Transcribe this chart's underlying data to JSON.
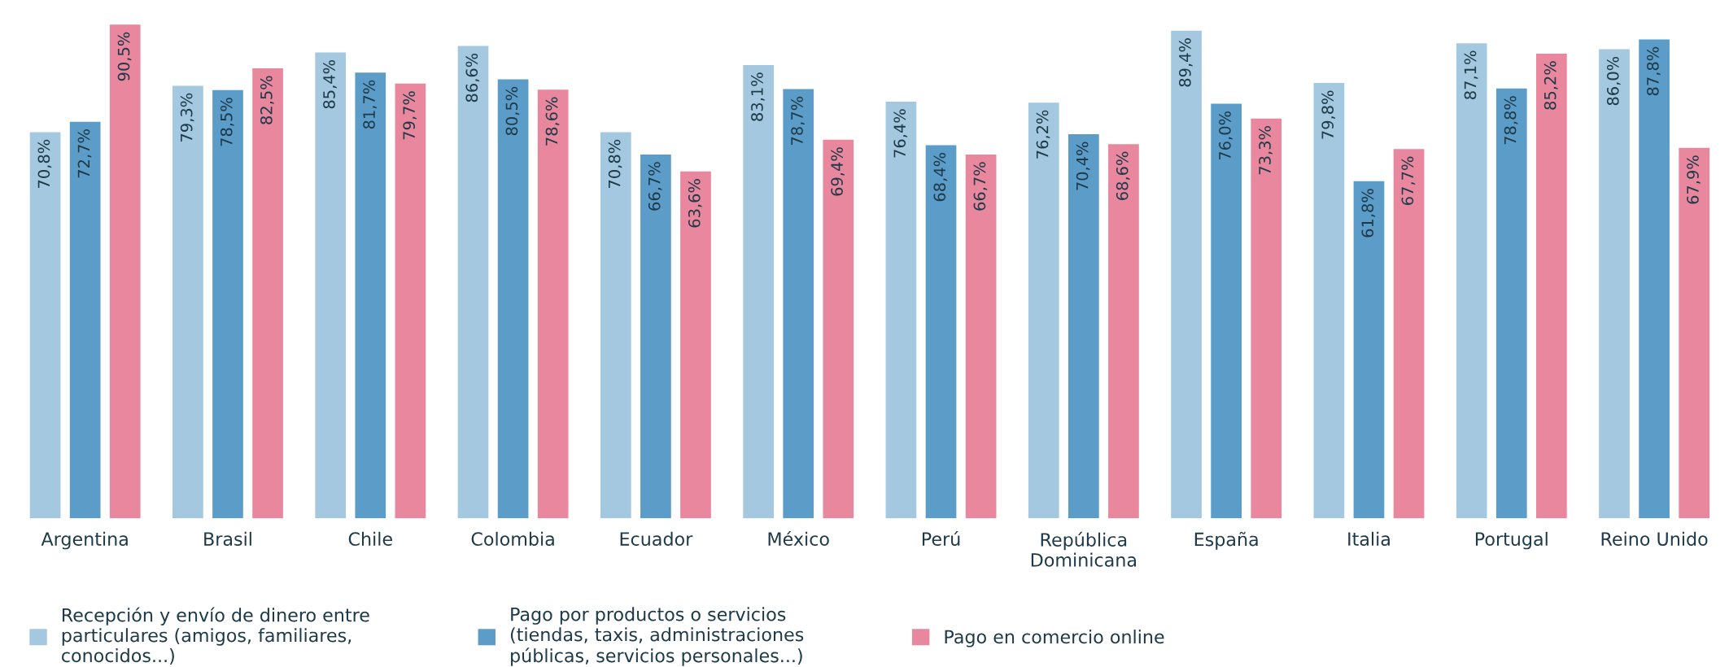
{
  "chart_data": {
    "type": "bar",
    "categories": [
      "Argentina",
      "Brasil",
      "Chile",
      "Colombia",
      "Ecuador",
      "México",
      "Perú",
      "República Dominicana",
      "España",
      "Italia",
      "Portugal",
      "Reino Unido"
    ],
    "series": [
      {
        "name": "Recepción y envío de dinero entre particulares (amigos, familiares, conocidos...)",
        "color": "#a3c8df",
        "values": [
          70.8,
          79.3,
          85.4,
          86.6,
          70.8,
          83.1,
          76.4,
          76.2,
          89.4,
          79.8,
          87.1,
          86.0
        ],
        "value_labels": [
          "70,8%",
          "79,3%",
          "85,4%",
          "86,6%",
          "70,8%",
          "83,1%",
          "76,4%",
          "76,2%",
          "89,4%",
          "79,8%",
          "87,1%",
          "86,0%"
        ]
      },
      {
        "name": "Pago por productos o servicios (tiendas, taxis, administraciones públicas, servicios personales...)",
        "color": "#5b9cc8",
        "values": [
          72.7,
          78.5,
          81.7,
          80.5,
          66.7,
          78.7,
          68.4,
          70.4,
          76.0,
          61.8,
          78.8,
          87.8
        ],
        "value_labels": [
          "72,7%",
          "78,5%",
          "81,7%",
          "80,5%",
          "66,7%",
          "78,7%",
          "68,4%",
          "70,4%",
          "76,0%",
          "61,8%",
          "78,8%",
          "87,8%"
        ]
      },
      {
        "name": "Pago en comercio online",
        "color": "#e8879d",
        "values": [
          90.5,
          82.5,
          79.7,
          78.6,
          63.6,
          69.4,
          66.7,
          68.6,
          73.3,
          67.7,
          85.2,
          67.9
        ],
        "value_labels": [
          "90,5%",
          "82,5%",
          "79,7%",
          "78,6%",
          "63,6%",
          "69,4%",
          "66,7%",
          "68,6%",
          "73,3%",
          "67,7%",
          "85,2%",
          "67,9%"
        ]
      }
    ],
    "tick_labels": "x",
    "legend": "bottom",
    "grid": false
  }
}
